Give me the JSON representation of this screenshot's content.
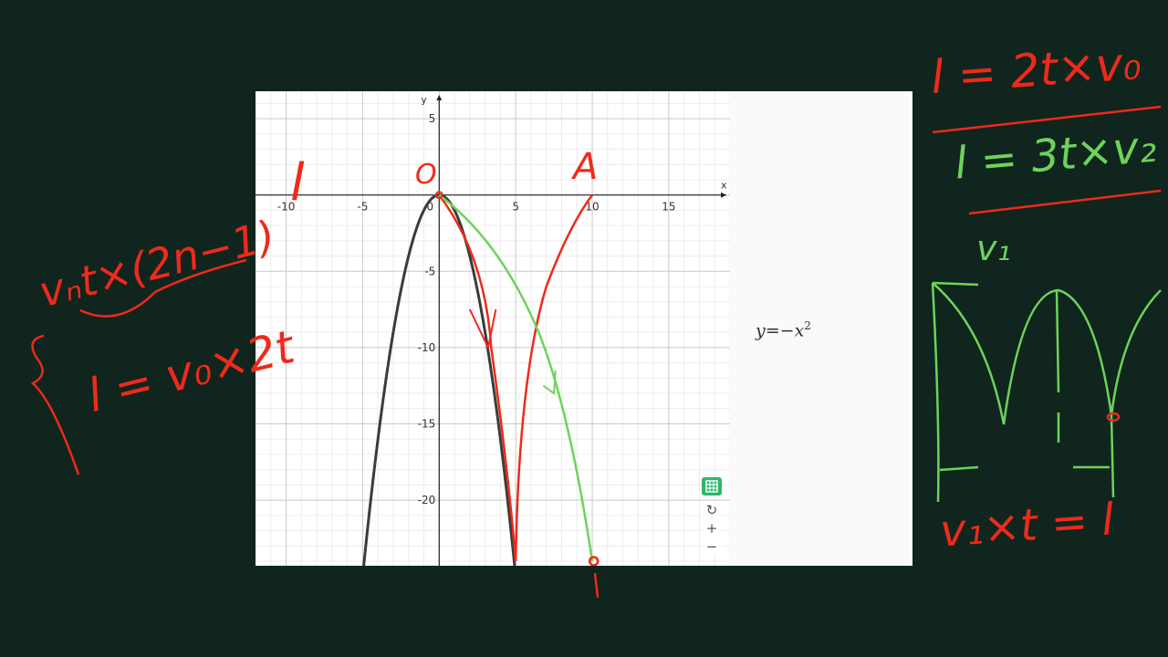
{
  "chart_data": {
    "type": "line",
    "x_ticks": [
      -10,
      -5,
      0,
      5,
      10,
      15
    ],
    "y_ticks": [
      5,
      -5,
      -10,
      -15,
      -20
    ],
    "x_tick_labels": [
      "-10",
      "-5",
      "0",
      "5",
      "10",
      "15"
    ],
    "y_tick_labels": [
      "5",
      "-5",
      "-10",
      "-15",
      "-20"
    ],
    "xlabel": "x",
    "ylabel": "y",
    "xlim": [
      -12,
      19
    ],
    "ylim": [
      -24.3,
      6.8
    ],
    "grid": true,
    "series": [
      {
        "name": "y=−x²",
        "function": "y = -x^2",
        "x_range": [
          -4.93,
          4.93
        ],
        "color": "#3b3b3b"
      }
    ]
  },
  "expression": {
    "lhs": "y=−x",
    "exponent": "2"
  },
  "controls": {
    "table_icon": "table-icon",
    "reset_icon": "↻",
    "zoom_in": "+",
    "zoom_out": "−"
  },
  "annotations": {
    "label_o": "O",
    "label_a": "A",
    "label_l_left": "l",
    "green_top": "l = 2t×v₀",
    "green_second": "l = 3t×v₂",
    "left_top": "vₙt×(2n−1)",
    "left_bottom": "l = v₀×2t",
    "right_v1": "v₁",
    "right_bottom": "v₁×t = l",
    "colors": {
      "red": "#ee2a1b",
      "green": "#6dd35a"
    }
  }
}
